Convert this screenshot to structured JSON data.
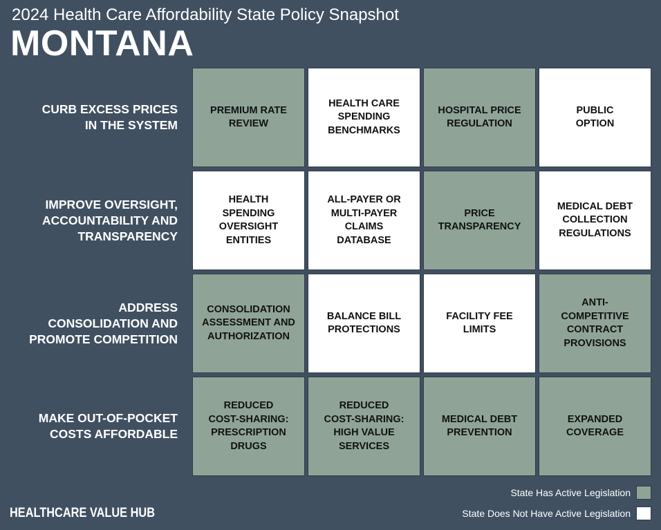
{
  "header": {
    "subtitle": "2024 Health Care Affordability State Policy Snapshot",
    "state": "MONTANA"
  },
  "colors": {
    "background": "#415061",
    "active": "#8fa497",
    "inactive": "#ffffff"
  },
  "rows": [
    {
      "label": "CURB EXCESS PRICES\nIN THE SYSTEM",
      "cells": [
        {
          "label": "PREMIUM RATE\nREVIEW",
          "active": true
        },
        {
          "label": "HEALTH CARE\nSPENDING\nBENCHMARKS",
          "active": false
        },
        {
          "label": "HOSPITAL PRICE\nREGULATION",
          "active": true
        },
        {
          "label": "PUBLIC\nOPTION",
          "active": false
        }
      ]
    },
    {
      "label": "IMPROVE OVERSIGHT,\nACCOUNTABILITY AND\nTRANSPARENCY",
      "cells": [
        {
          "label": "HEALTH\nSPENDING\nOVERSIGHT\nENTITIES",
          "active": false
        },
        {
          "label": "ALL-PAYER OR\nMULTI-PAYER\nCLAIMS\nDATABASE",
          "active": false
        },
        {
          "label": "PRICE\nTRANSPARENCY",
          "active": true
        },
        {
          "label": "MEDICAL DEBT\nCOLLECTION\nREGULATIONS",
          "active": false
        }
      ]
    },
    {
      "label": "ADDRESS\nCONSOLIDATION AND\nPROMOTE COMPETITION",
      "cells": [
        {
          "label": "CONSOLIDATION\nASSESSMENT AND\nAUTHORIZATION",
          "active": true
        },
        {
          "label": "BALANCE BILL\nPROTECTIONS",
          "active": false
        },
        {
          "label": "FACILITY FEE\nLIMITS",
          "active": false
        },
        {
          "label": "ANTI-\nCOMPETITIVE\nCONTRACT\nPROVISIONS",
          "active": true
        }
      ]
    },
    {
      "label": "MAKE OUT-OF-POCKET\nCOSTS AFFORDABLE",
      "cells": [
        {
          "label": "REDUCED\nCOST-SHARING:\nPRESCRIPTION\nDRUGS",
          "active": true
        },
        {
          "label": "REDUCED\nCOST-SHARING:\nHIGH VALUE\nSERVICES",
          "active": true
        },
        {
          "label": "MEDICAL DEBT\nPREVENTION",
          "active": true
        },
        {
          "label": "EXPANDED\nCOVERAGE",
          "active": true
        }
      ]
    }
  ],
  "legend": {
    "active_label": "State Has Active Legislation",
    "inactive_label": "State Does Not Have Active Legislation"
  },
  "footer": {
    "brand": "HEALTHCARE VALUE HUB"
  }
}
